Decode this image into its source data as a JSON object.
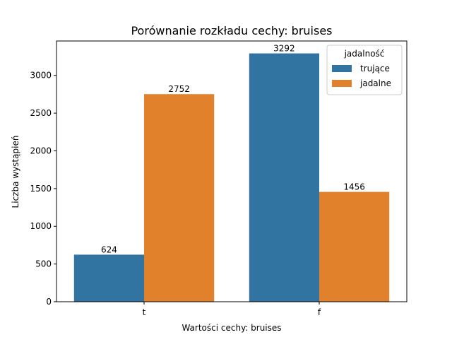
{
  "chart_data": {
    "type": "bar",
    "title": "Porównanie rozkładu cechy: bruises",
    "xlabel": "Wartości cechy: bruises",
    "ylabel": "Liczba wystąpień",
    "categories": [
      "t",
      "f"
    ],
    "series": [
      {
        "name": "trujące",
        "values": [
          624,
          3292
        ],
        "color": "#3274a1"
      },
      {
        "name": "jadalne",
        "values": [
          2752,
          1456
        ],
        "color": "#e1812c"
      }
    ],
    "ylim": [
      0,
      3456.6
    ],
    "yticks": [
      0,
      500,
      1000,
      1500,
      2000,
      2500,
      3000
    ],
    "grid": false,
    "legend": {
      "title": "jadalność",
      "position": "top-right"
    },
    "data_labels": true
  }
}
